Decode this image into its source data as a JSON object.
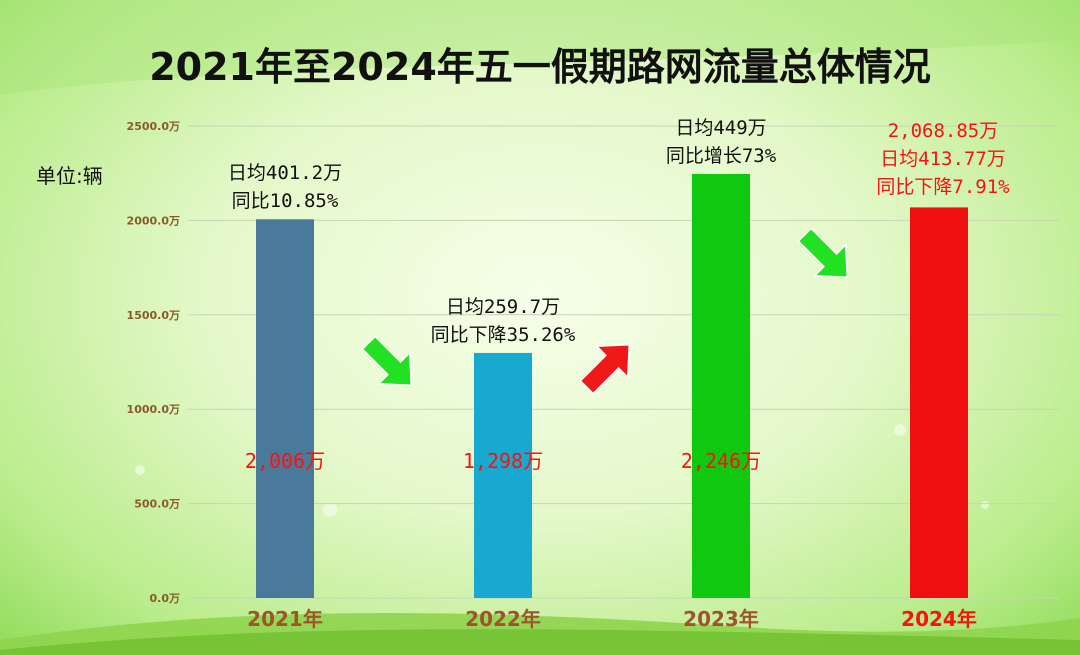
{
  "title": "2021年至2024年五一假期路网流量总体情况",
  "unit_label": "单位:辆",
  "chart_data": {
    "type": "bar",
    "categories": [
      "2021年",
      "2022年",
      "2023年",
      "2024年"
    ],
    "values": [
      2006,
      1298,
      2246,
      2068.85
    ],
    "value_labels": [
      "2,006万",
      "1,298万",
      "2,246万",
      "2,068.85万"
    ],
    "ylim": [
      0,
      2500
    ],
    "yticks": [
      0,
      500,
      1000,
      1500,
      2000,
      2500
    ],
    "ytick_labels": [
      "0.0万",
      "500.0万",
      "1000.0万",
      "1500.0万",
      "2000.0万",
      "2500.0万"
    ],
    "grid": true,
    "bar_colors": [
      "#4a7a9b",
      "#17a9cf",
      "#10c810",
      "#ee1010"
    ],
    "category_colors": [
      "#a0522d",
      "#a0522d",
      "#a0522d",
      "#ff1010"
    ],
    "annotations": [
      [
        "日均401.2万",
        "同比10.85%"
      ],
      [
        "日均259.7万",
        "同比下降35.26%"
      ],
      [
        "日均449万",
        "同比增长73%"
      ],
      [
        "日均413.77万",
        "同比下降7.91%"
      ]
    ],
    "trend_arrows": [
      "down",
      "up",
      "down"
    ],
    "arrow_colors": {
      "down": "#22e022",
      "up": "#ee1a1a"
    }
  }
}
